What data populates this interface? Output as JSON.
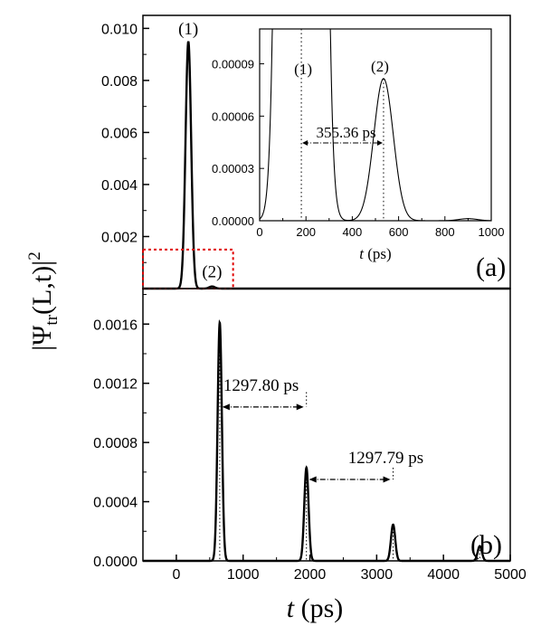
{
  "figure": {
    "ylabel_lead": "|Ψ",
    "ylabel_sub": "tr",
    "ylabel_arg": "(L,t)|",
    "ylabel_exp": "2",
    "xlabel_t": "t",
    "xlabel_unit": "(ps)"
  },
  "chart_data": [
    {
      "type": "line",
      "panel_label": "(a)",
      "xlim": [
        -500,
        5000
      ],
      "ylim": [
        0,
        0.0105
      ],
      "xticks": [],
      "yticks": [
        0.002,
        0.004,
        0.006,
        0.008,
        0.01
      ],
      "ytick_labels": [
        "0.002",
        "0.004",
        "0.006",
        "0.008",
        "0.010"
      ],
      "peaks": [
        {
          "label": "(1)",
          "center": 180,
          "height": 0.0095,
          "sigma": 42
        },
        {
          "label": "(2)",
          "center": 535,
          "height": 8.15e-05,
          "sigma": 42
        }
      ],
      "highlight_box": {
        "x": [
          -500,
          850
        ],
        "y": [
          0,
          0.0015
        ],
        "color": "#e00000"
      },
      "inset": {
        "xlabel_t": "t",
        "xlabel_unit": "(ps)",
        "xlim": [
          0,
          1000
        ],
        "ylim": [
          0,
          0.00011
        ],
        "xticks": [
          0,
          200,
          400,
          600,
          800,
          1000
        ],
        "xtick_labels": [
          "0",
          "200",
          "400",
          "600",
          "800",
          "1000"
        ],
        "yticks": [
          0,
          3e-05,
          6e-05,
          9e-05
        ],
        "ytick_labels": [
          "0.00000",
          "0.00003",
          "0.00006",
          "0.00009"
        ],
        "marker_lines_x": [
          180,
          535
        ],
        "interval": {
          "x": [
            180,
            535
          ],
          "y": 4.2e-05,
          "label": "355.36 ps"
        }
      }
    },
    {
      "type": "line",
      "panel_label": "(b)",
      "xlim": [
        -500,
        5000
      ],
      "ylim": [
        0,
        0.00184
      ],
      "xticks": [
        0,
        1000,
        2000,
        3000,
        4000,
        5000
      ],
      "xtick_labels": [
        "0",
        "1000",
        "2000",
        "3000",
        "4000",
        "5000"
      ],
      "yticks": [
        0,
        0.0004,
        0.0008,
        0.0012,
        0.0016
      ],
      "ytick_labels": [
        "0.0000",
        "0.0004",
        "0.0008",
        "0.0012",
        "0.0016"
      ],
      "peaks": [
        {
          "center": 650,
          "height": 0.00161,
          "sigma": 32
        },
        {
          "center": 1948,
          "height": 0.00063,
          "sigma": 32
        },
        {
          "center": 3246,
          "height": 0.000245,
          "sigma": 32
        },
        {
          "center": 4544,
          "height": 0.0001,
          "sigma": 32
        }
      ],
      "intervals": [
        {
          "x": [
            650,
            1948
          ],
          "y": 0.00104,
          "label": "1297.80 ps",
          "marker_top": 0.00114
        },
        {
          "x": [
            1948,
            3246
          ],
          "y": 0.00055,
          "label": "1297.79 ps",
          "marker_top": 0.00063
        }
      ]
    }
  ]
}
